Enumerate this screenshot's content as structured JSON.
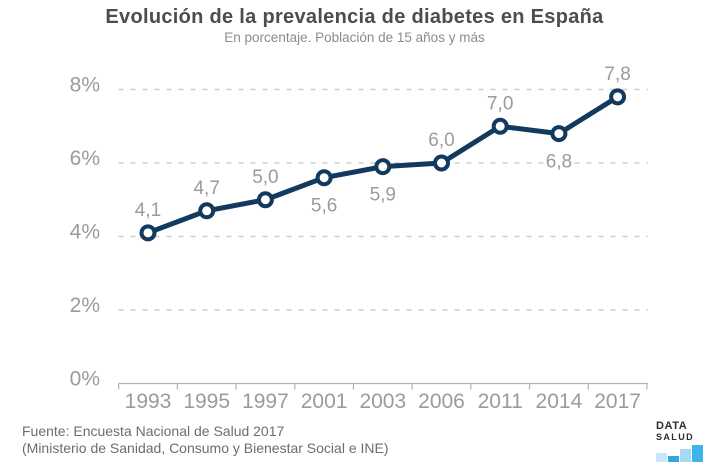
{
  "header": {
    "title": "Evolución de la prevalencia de diabetes en España",
    "subtitle": "En porcentaje. Población de 15 años y más"
  },
  "chart_data": {
    "type": "line",
    "title": "Evolución de la prevalencia de diabetes en España",
    "subtitle": "En porcentaje. Población de 15 años y más",
    "categories": [
      "1993",
      "1995",
      "1997",
      "2001",
      "2003",
      "2006",
      "2011",
      "2014",
      "2017"
    ],
    "values": [
      4.1,
      4.7,
      5.0,
      5.6,
      5.9,
      6.0,
      7.0,
      6.8,
      7.8
    ],
    "value_labels": [
      "4,1",
      "4,7",
      "5,0",
      "5,6",
      "5,9",
      "6,0",
      "7,0",
      "6,8",
      "7,8"
    ],
    "label_positions": [
      "above",
      "above",
      "above",
      "below",
      "below",
      "above",
      "above",
      "below",
      "above"
    ],
    "xlabel": "",
    "ylabel": "",
    "ylim": [
      0,
      8
    ],
    "y_ticks": [
      {
        "value": 0,
        "label": "0%"
      },
      {
        "value": 2,
        "label": "2%"
      },
      {
        "value": 4,
        "label": "4%"
      },
      {
        "value": 6,
        "label": "6%"
      },
      {
        "value": 8,
        "label": "8%"
      }
    ],
    "grid": "horizontal-dashed",
    "legend": "none",
    "line_color": "#12395e",
    "marker_style": "open-circle",
    "marker_fill": "#ffffff",
    "grid_color": "#cdcdcd",
    "axis_color": "#b3b3b3",
    "label_color": "#9b9b9b"
  },
  "footer": {
    "source_line1": "Fuente: Encuesta Nacional de Salud 2017",
    "source_line2": "(Ministerio de Sanidad, Consumo y Bienestar Social e INE)"
  },
  "logo": {
    "text_top": "DATA",
    "text_bottom": "SALUD",
    "bars": [
      {
        "height": 9,
        "color": "#c9e7f8"
      },
      {
        "height": 6,
        "color": "#2fa9e0"
      },
      {
        "height": 13,
        "color": "#a6d9f4"
      },
      {
        "height": 17,
        "color": "#3fb4e8"
      }
    ]
  }
}
